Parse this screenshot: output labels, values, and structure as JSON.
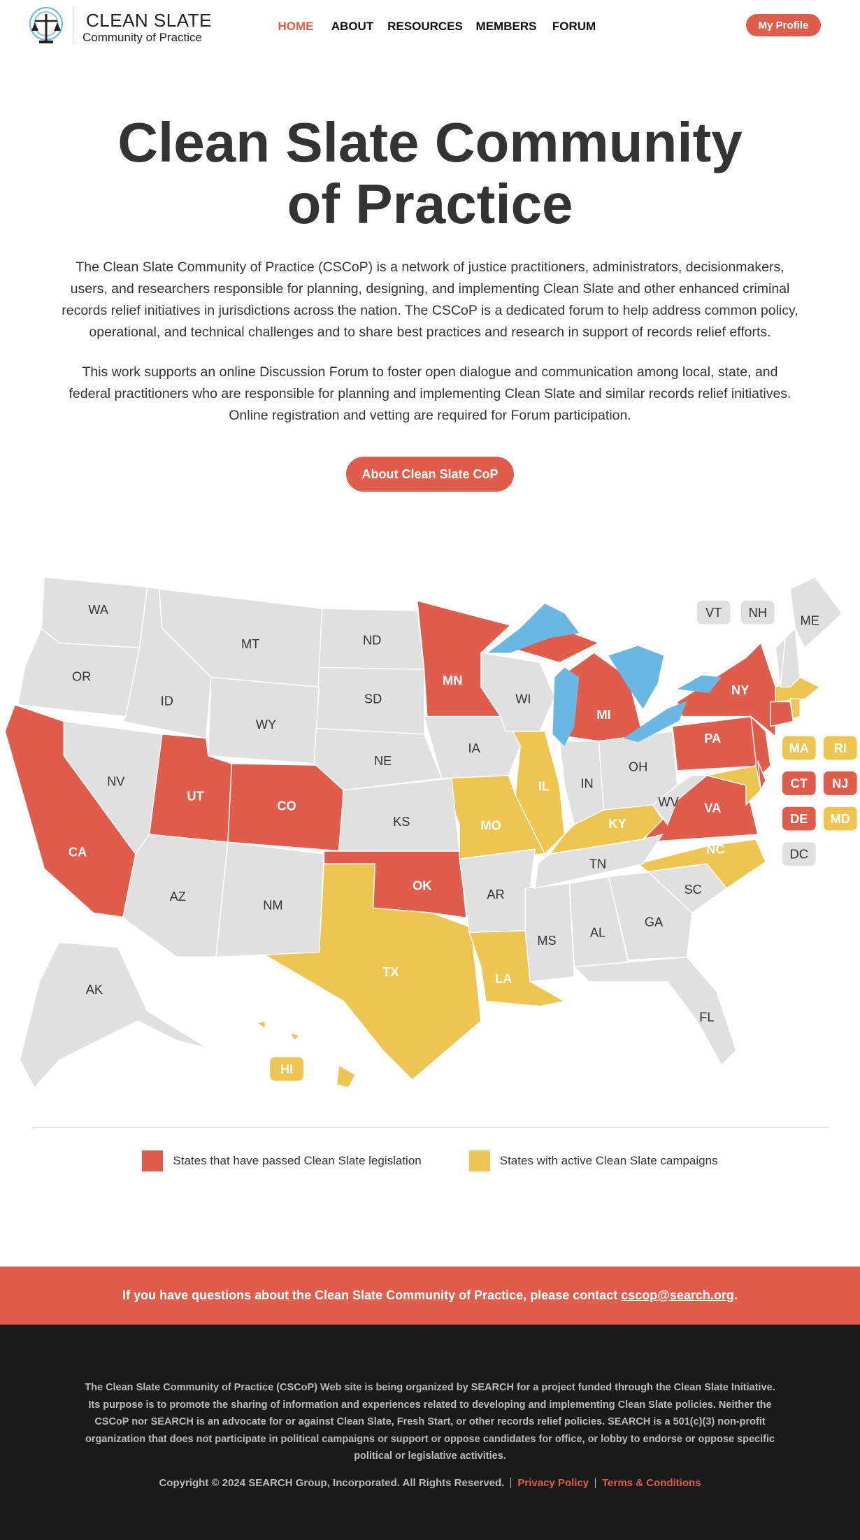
{
  "header": {
    "logo_title": "CLEAN SLATE",
    "logo_subtitle": "Community of Practice",
    "nav": [
      "HOME",
      "ABOUT",
      "RESOURCES",
      "MEMBERS",
      "FORUM"
    ],
    "profile_button": "My Profile"
  },
  "hero": {
    "title": "Clean Slate Community of Practice",
    "paragraphs": [
      "The Clean Slate Community of Practice (CSCoP) is a network of justice practitioners, administrators, decisionmakers, users, and researchers responsible for planning, designing, and implementing Clean Slate and other enhanced criminal records relief initiatives in jurisdictions across the nation. The CSCoP is a dedicated forum to help address common policy, operational, and technical challenges and to share best practices and research in support of records relief efforts.",
      "This work supports an online Discussion Forum to foster open dialogue and communication among local, state, and federal practitioners who are responsible for planning and implementing Clean Slate and similar records relief initiatives. Online registration and vetting are required for Forum participation."
    ],
    "button": "About Clean Slate CoP"
  },
  "map": {
    "legend": [
      {
        "label": "States that have passed Clean Slate legislation",
        "color": "#e05c4b"
      },
      {
        "label": "States with active Clean Slate campaigns",
        "color": "#eec550"
      }
    ],
    "other_color": "#e0e0e0",
    "lake_color": "#6bb7e3",
    "passed": [
      "CA",
      "UT",
      "CO",
      "OK",
      "MN",
      "MI",
      "PA",
      "NY",
      "VA",
      "CT",
      "NJ",
      "DE"
    ],
    "campaigns": [
      "TX",
      "LA",
      "MO",
      "IL",
      "KY",
      "NC",
      "MA",
      "RI",
      "MD",
      "HI"
    ],
    "other": [
      "WA",
      "OR",
      "ID",
      "MT",
      "ND",
      "SD",
      "WY",
      "NE",
      "KS",
      "NV",
      "AZ",
      "NM",
      "IA",
      "WI",
      "AR",
      "MS",
      "AL",
      "GA",
      "FL",
      "SC",
      "TN",
      "IN",
      "OH",
      "WV",
      "ME",
      "VT",
      "NH",
      "AK",
      "DC"
    ]
  },
  "contact": {
    "text": "If you have questions about the Clean Slate Community of Practice, please contact",
    "email": "cscop@search.org",
    "end": "."
  },
  "footer": {
    "text": "The Clean Slate Community of Practice (CSCoP) Web site is being organized by SEARCH for a project funded through the Clean Slate Initiative. Its purpose is to promote the sharing of information and experiences related to developing and implementing Clean Slate policies. Neither the CSCoP nor SEARCH is an advocate for or against Clean Slate, Fresh Start, or other records relief policies. SEARCH is a 501(c)(3) non-profit organization that does not participate in political campaigns or support or oppose candidates for office, or lobby to endorse or oppose specific political or legislative activities.",
    "copyright": "Copyright © 2024 SEARCH Group, Incorporated. All Rights Reserved.",
    "links": [
      "Privacy Policy",
      "Terms & Conditions"
    ]
  }
}
